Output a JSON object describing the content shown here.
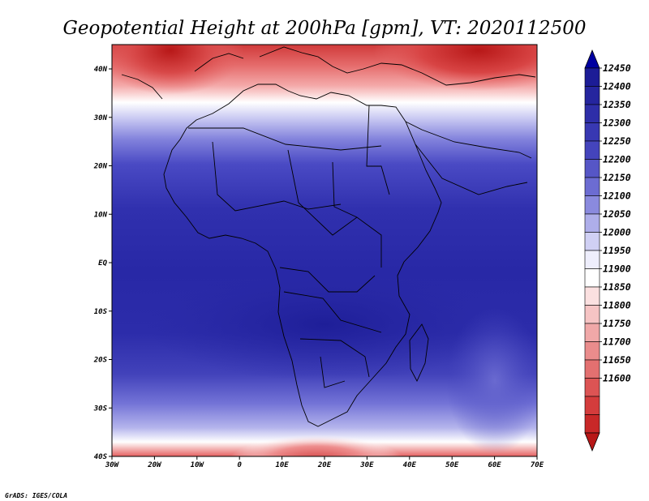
{
  "title": "Geopotential Height at 200hPa [gpm], VT: 2020112500",
  "credit": "GrADS: IGES/COLA",
  "map": {
    "lon_ticks": [
      "30W",
      "20W",
      "10W",
      "0",
      "10E",
      "20E",
      "30E",
      "40E",
      "50E",
      "60E",
      "70E"
    ],
    "lat_ticks": [
      "40N",
      "30N",
      "20N",
      "10N",
      "EQ",
      "10S",
      "20S",
      "30S",
      "40S"
    ]
  },
  "colorbar": {
    "labels": [
      "12450",
      "12400",
      "12350",
      "12300",
      "12250",
      "12200",
      "12150",
      "12100",
      "12050",
      "12000",
      "11950",
      "11900",
      "11850",
      "11800",
      "11750",
      "11700",
      "11650",
      "11600"
    ],
    "colors": [
      "#0000a0",
      "#1c1c96",
      "#25259e",
      "#2e2ea8",
      "#3838b2",
      "#4444bc",
      "#5656c6",
      "#6c6cd2",
      "#8a8ade",
      "#aeaeea",
      "#d0d0f4",
      "#eeeefc",
      "#ffffff",
      "#fbe0e0",
      "#f6c4c4",
      "#f0a8a8",
      "#ea8c8c",
      "#e37070",
      "#dc5454",
      "#d43c3c",
      "#c82828",
      "#b81818"
    ]
  }
}
